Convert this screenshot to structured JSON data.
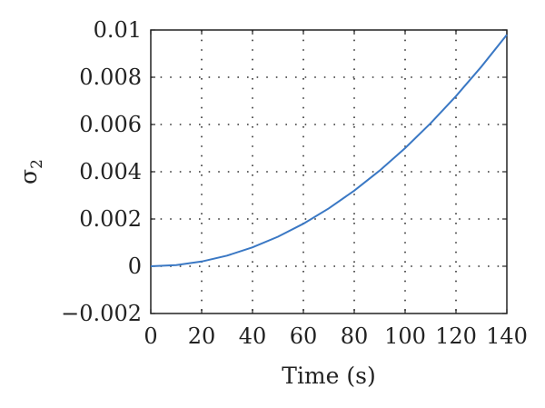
{
  "chart_data": {
    "type": "line",
    "xlabel": "Time (s)",
    "ylabel": {
      "symbol": "σ",
      "subscript": "2"
    },
    "xlim": [
      0,
      140
    ],
    "ylim": [
      -0.002,
      0.01
    ],
    "x_ticks": [
      "0",
      "20",
      "40",
      "60",
      "80",
      "100",
      "120",
      "140"
    ],
    "y_ticks": [
      "−0.002",
      "0",
      "0.002",
      "0.004",
      "0.006",
      "0.008",
      "0.01"
    ],
    "grid": true,
    "grid_style": "dotted",
    "line_color": "#3a78c4",
    "series": [
      {
        "x": [
          0,
          10,
          20,
          30,
          40,
          50,
          60,
          70,
          80,
          90,
          100,
          110,
          120,
          130,
          140
        ],
        "y": [
          0,
          5e-05,
          0.0002,
          0.00045,
          0.0008,
          0.00125,
          0.0018,
          0.00245,
          0.0032,
          0.00405,
          0.005,
          0.00605,
          0.0072,
          0.00845,
          0.0098
        ]
      }
    ]
  }
}
